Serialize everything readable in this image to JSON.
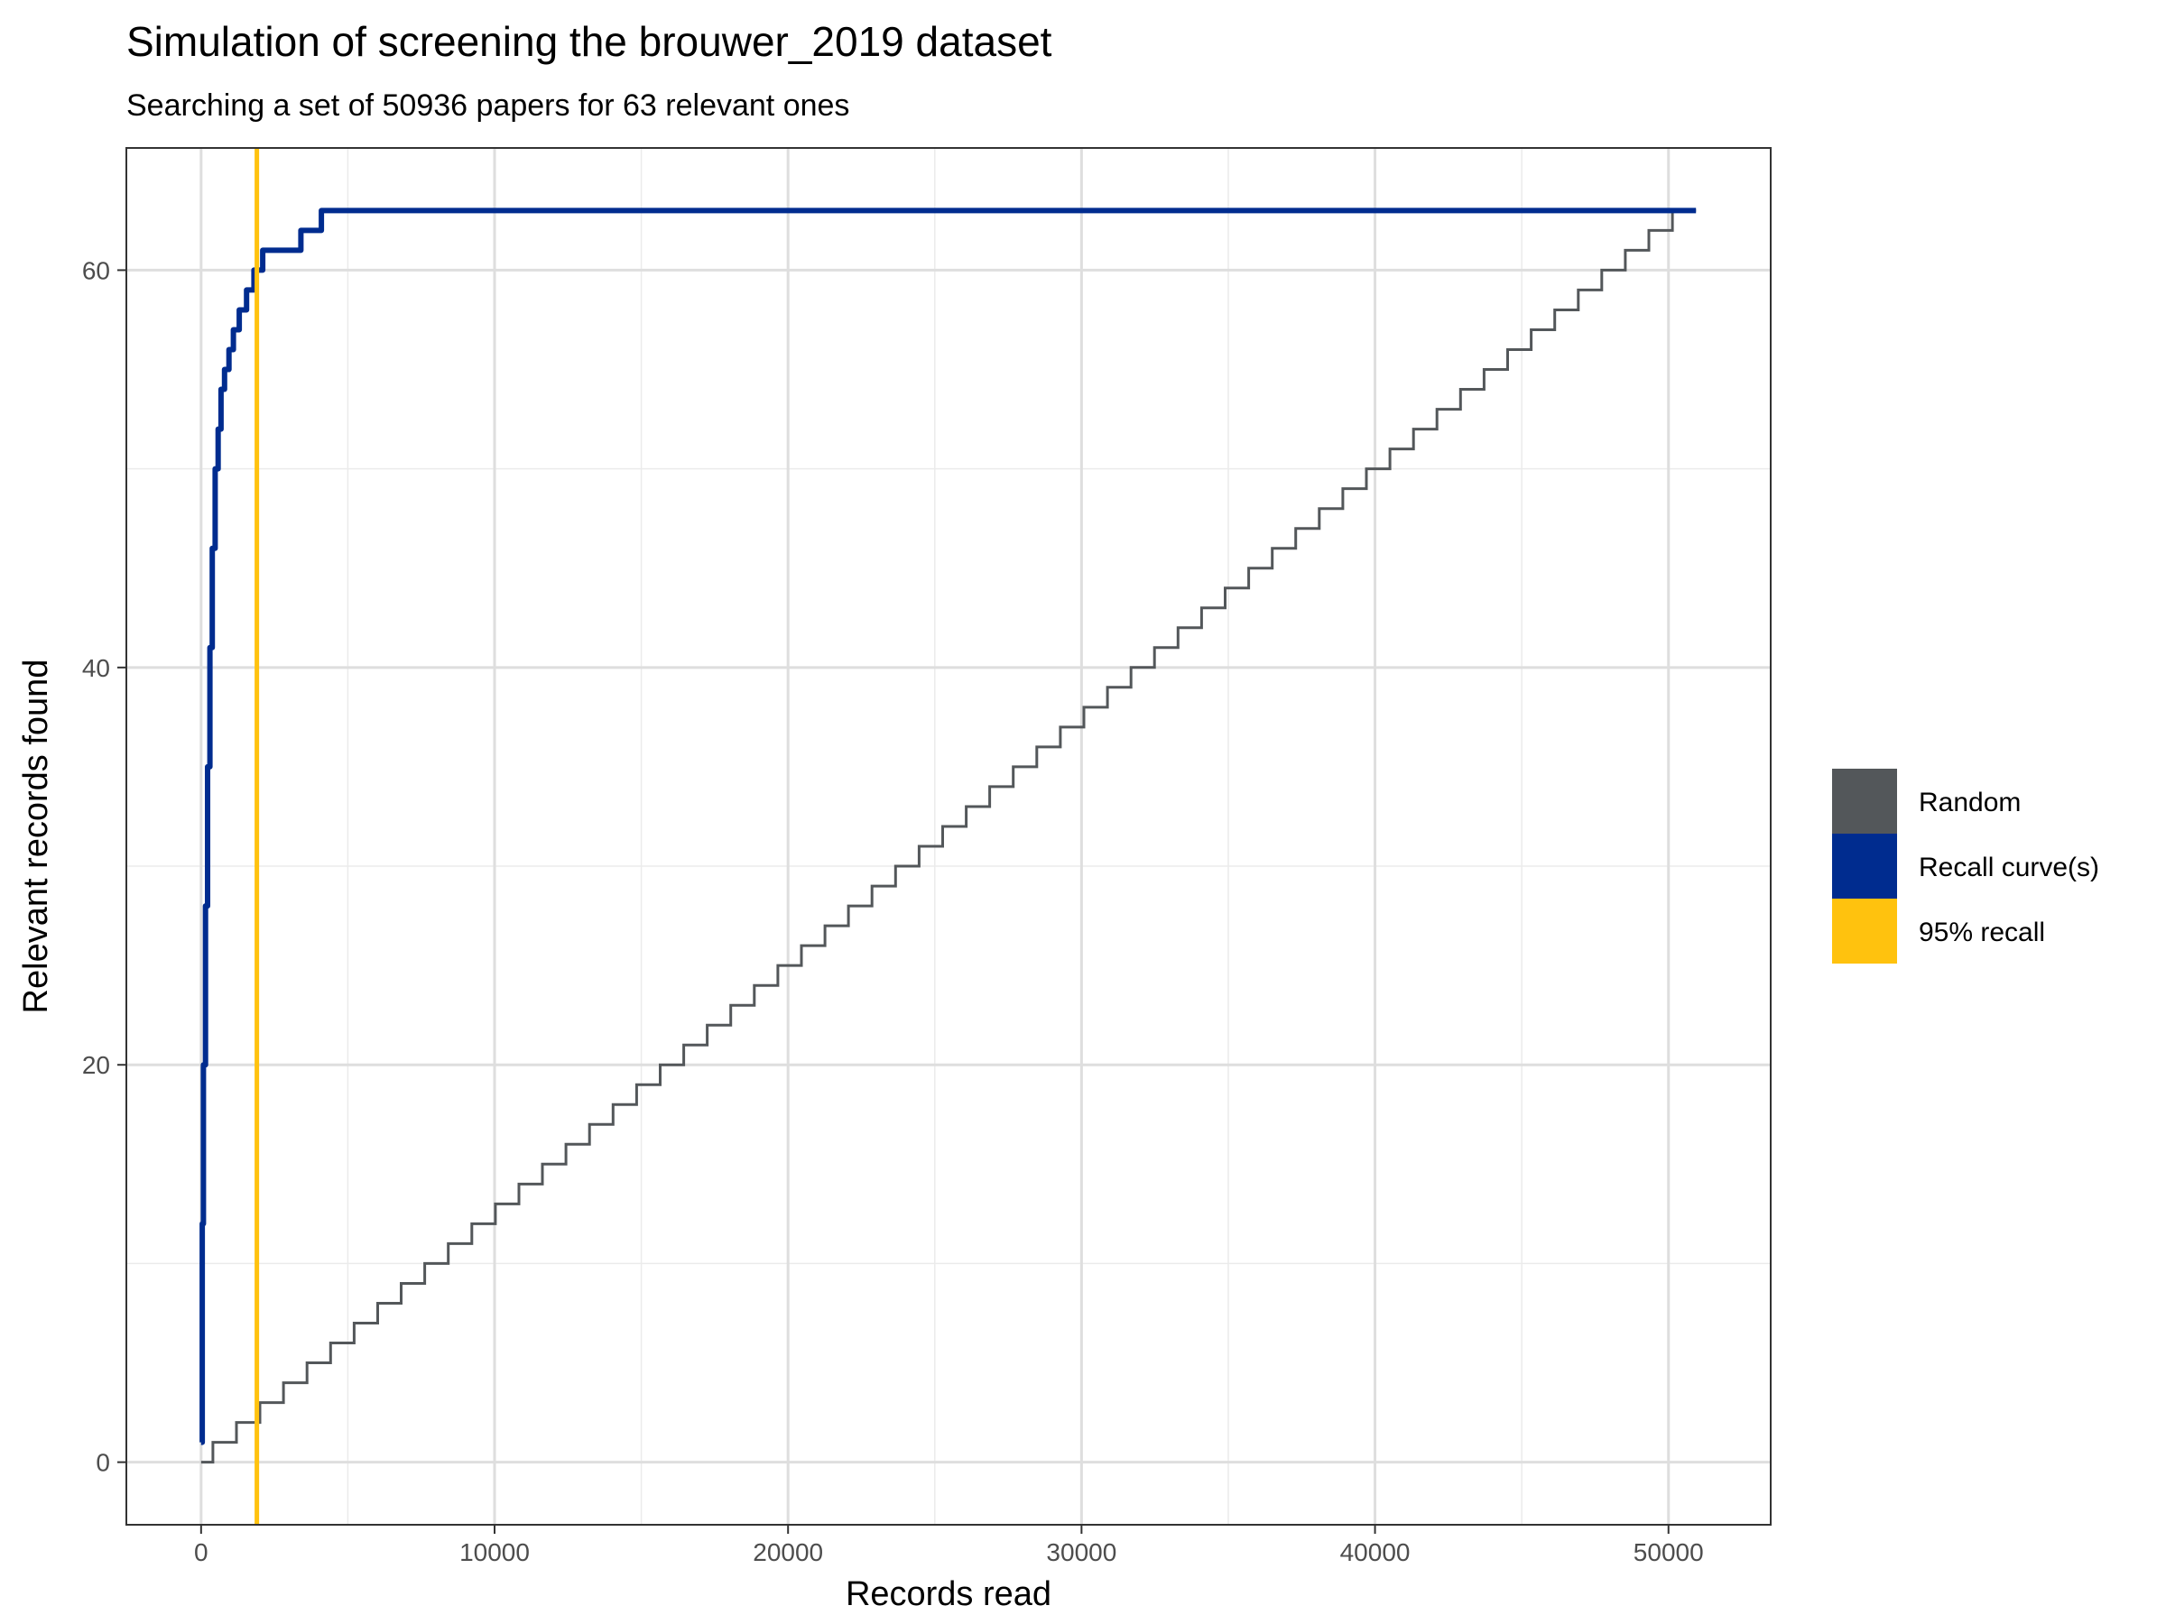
{
  "chart_data": {
    "type": "line",
    "title": "Simulation of screening the brouwer_2019 dataset",
    "subtitle": "Searching a set of 50936 papers for 63 relevant ones",
    "xlabel": "Records read",
    "ylabel": "Relevant records found",
    "xlim": [
      -2547,
      53483
    ],
    "ylim": [
      -3.15,
      66.15
    ],
    "x_ticks": [
      0,
      10000,
      20000,
      30000,
      40000,
      50000
    ],
    "x_tick_labels": [
      "0",
      "10000",
      "20000",
      "30000",
      "40000",
      "50000"
    ],
    "y_ticks": [
      0,
      20,
      40,
      60
    ],
    "y_tick_labels": [
      "0",
      "20",
      "40",
      "60"
    ],
    "grid": true,
    "legend_position": "right",
    "series": [
      {
        "name": "Random",
        "color": "#53575a",
        "step": true,
        "total_records": 50936,
        "total_relevant": 63
      },
      {
        "name": "Recall curve(s)",
        "color": "#002c8f",
        "step": true,
        "points": [
          [
            0,
            1
          ],
          [
            40,
            12
          ],
          [
            80,
            20
          ],
          [
            150,
            28
          ],
          [
            220,
            35
          ],
          [
            300,
            41
          ],
          [
            380,
            46
          ],
          [
            480,
            50
          ],
          [
            580,
            52
          ],
          [
            680,
            54
          ],
          [
            800,
            55
          ],
          [
            950,
            56
          ],
          [
            1100,
            57
          ],
          [
            1300,
            58
          ],
          [
            1550,
            59
          ],
          [
            1800,
            60
          ],
          [
            2100,
            61
          ],
          [
            3400,
            62
          ],
          [
            4100,
            63
          ],
          [
            50936,
            63
          ]
        ]
      },
      {
        "name": "95% recall",
        "color": "#ffc20e",
        "vline_x": 1900
      }
    ]
  }
}
